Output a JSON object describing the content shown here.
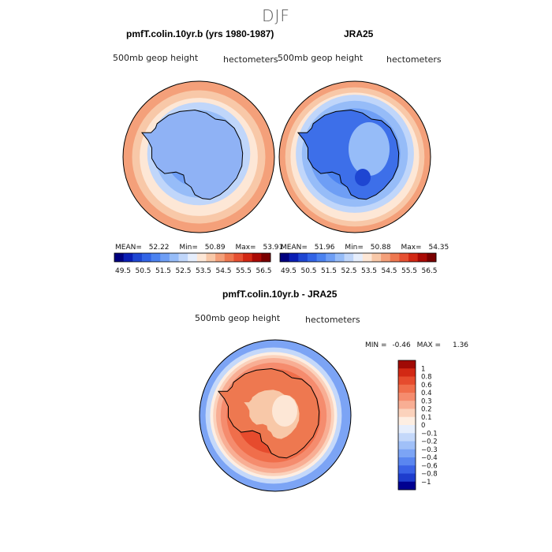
{
  "page_title": "DJF",
  "chart_data": [
    {
      "type": "heatmap",
      "projection": "south-polar-stereographic",
      "title": "pmfT.colin.10yr.b (yrs 1980-1987)",
      "field_label": "500mb geop height",
      "units_label": "hectometers",
      "stats": {
        "mean_label": "MEAN=",
        "mean": "52.22",
        "min_label": "Min=",
        "min": "50.89",
        "max_label": "Max=",
        "max": "53.91"
      },
      "colorbar": {
        "labels": [
          "49.5",
          "50.5",
          "51.5",
          "52.5",
          "53.5",
          "54.5",
          "55.5",
          "56.5"
        ],
        "colors": [
          "#00007e",
          "#0a1eb4",
          "#1e46d2",
          "#3264e6",
          "#4b82f0",
          "#6e9ef5",
          "#96bcf8",
          "#c0d6fa",
          "#e6eefc",
          "#fde7d6",
          "#f8c8a8",
          "#f4a07a",
          "#ee7850",
          "#e65032",
          "#d22814",
          "#aa0a05",
          "#7a0000"
        ]
      },
      "bands": [
        {
          "level": 54.0,
          "color": "#f4a07a"
        },
        {
          "level": 53.5,
          "color": "#f8c8a8"
        },
        {
          "level": 53.0,
          "color": "#fde7d6"
        },
        {
          "level": 52.5,
          "color": "#c0d6fa"
        },
        {
          "level": 52.0,
          "color": "#96bcf8"
        },
        {
          "level": 51.5,
          "color": "#6e9ef5"
        }
      ]
    },
    {
      "type": "heatmap",
      "projection": "south-polar-stereographic",
      "title": "JRA25",
      "field_label": "500mb geop height",
      "units_label": "hectometers",
      "stats": {
        "mean_label": "MEAN=",
        "mean": "51.96",
        "min_label": "Min=",
        "min": "50.88",
        "max_label": "Max=",
        "max": "54.35"
      },
      "colorbar": {
        "labels": [
          "49.5",
          "50.5",
          "51.5",
          "52.5",
          "53.5",
          "54.5",
          "55.5",
          "56.5"
        ],
        "colors": [
          "#00007e",
          "#0a1eb4",
          "#1e46d2",
          "#3264e6",
          "#4b82f0",
          "#6e9ef5",
          "#96bcf8",
          "#c0d6fa",
          "#e6eefc",
          "#fde7d6",
          "#f8c8a8",
          "#f4a07a",
          "#ee7850",
          "#e65032",
          "#d22814",
          "#aa0a05",
          "#7a0000"
        ]
      },
      "bands": [
        {
          "level": 54.0,
          "color": "#f4a07a"
        },
        {
          "level": 53.5,
          "color": "#f8c8a8"
        },
        {
          "level": 53.0,
          "color": "#fde7d6"
        },
        {
          "level": 52.5,
          "color": "#c0d6fa"
        },
        {
          "level": 52.0,
          "color": "#96bcf8"
        },
        {
          "level": 51.5,
          "color": "#6e9ef5"
        },
        {
          "level": 51.0,
          "color": "#4b82f0"
        }
      ]
    },
    {
      "type": "heatmap",
      "projection": "south-polar-stereographic",
      "title": "pmfT.colin.10yr.b - JRA25",
      "field_label": "500mb geop height",
      "units_label": "hectometers",
      "stats": {
        "min_label": "MIN =",
        "min": "-0.46",
        "max_label": "MAX =",
        "max": "1.36"
      },
      "colorbar": {
        "labels": [
          "1",
          "0.8",
          "0.6",
          "0.4",
          "0.3",
          "0.2",
          "0.1",
          "0",
          "−0.1",
          "−0.2",
          "−0.3",
          "−0.4",
          "−0.6",
          "−0.8",
          "−1"
        ],
        "colors": [
          "#a00a05",
          "#d22814",
          "#e64b2d",
          "#f06e4b",
          "#f58c6e",
          "#f8ae94",
          "#fbd2bc",
          "#fdeee2",
          "#e6eefc",
          "#c4d8fa",
          "#a0c0f8",
          "#7ca4f5",
          "#5a86f0",
          "#3a62e6",
          "#1e3ccd",
          "#000090"
        ]
      },
      "bands": [
        {
          "level": -0.2,
          "color": "#7ca4f5"
        },
        {
          "level": -0.1,
          "color": "#c4d8fa"
        },
        {
          "level": 0.0,
          "color": "#fdeee2"
        },
        {
          "level": 0.1,
          "color": "#fbd2bc"
        },
        {
          "level": 0.2,
          "color": "#f8ae94"
        },
        {
          "level": 0.3,
          "color": "#f58c6e"
        },
        {
          "level": 0.4,
          "color": "#f06e4b"
        },
        {
          "level": 0.6,
          "color": "#e64b2d"
        },
        {
          "level": 0.5,
          "color": "#f06e4b"
        },
        {
          "level": 0.3,
          "color": "#f8ae94"
        }
      ]
    }
  ]
}
